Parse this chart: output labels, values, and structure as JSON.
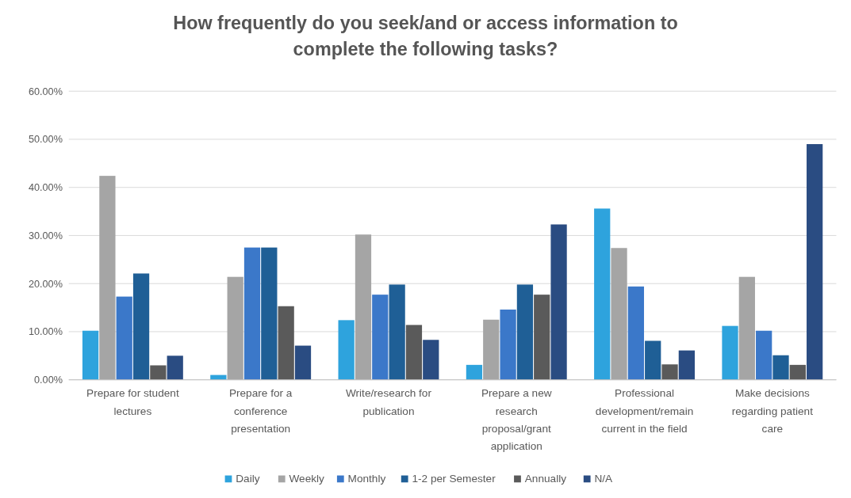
{
  "chart_data": {
    "type": "bar",
    "title": "How frequently do you seek/and or access information to complete the following tasks?",
    "categories": [
      "Prepare for student lectures",
      "Prepare for a conference presentation",
      "Write/research for publication",
      "Prepare a new research proposal/grant application",
      "Professional development/remain current in the field",
      "Make decisions regarding patient care"
    ],
    "series": [
      {
        "name": "Daily",
        "color": "#2ea3dd",
        "values": [
          10.2,
          1.0,
          12.4,
          3.1,
          35.6,
          11.2
        ]
      },
      {
        "name": "Weekly",
        "color": "#a5a5a5",
        "values": [
          42.4,
          21.4,
          30.2,
          12.5,
          27.4,
          21.4
        ]
      },
      {
        "name": "Monthly",
        "color": "#3b78c9",
        "values": [
          17.3,
          27.5,
          17.7,
          14.6,
          19.4,
          10.2
        ]
      },
      {
        "name": "1-2 per Semester",
        "color": "#1f5f96",
        "values": [
          22.1,
          27.5,
          19.8,
          19.8,
          8.1,
          5.1
        ]
      },
      {
        "name": "Annually",
        "color": "#5a5a5a",
        "values": [
          3.0,
          15.3,
          11.4,
          17.7,
          3.2,
          3.1
        ]
      },
      {
        "name": "N/A",
        "color": "#2a4c82",
        "values": [
          5.0,
          7.1,
          8.3,
          32.3,
          6.1,
          49.0
        ]
      }
    ],
    "ylim": [
      0,
      60
    ],
    "yticks": [
      {
        "value": 0,
        "label": "0.00%"
      },
      {
        "value": 10,
        "label": "10.00%"
      },
      {
        "value": 20,
        "label": "20.00%"
      },
      {
        "value": 30,
        "label": "30.00%"
      },
      {
        "value": 40,
        "label": "40.00%"
      },
      {
        "value": 50,
        "label": "50.00%"
      },
      {
        "value": 60,
        "label": "60.00%"
      }
    ],
    "grid": "y",
    "legend": "bottom"
  }
}
